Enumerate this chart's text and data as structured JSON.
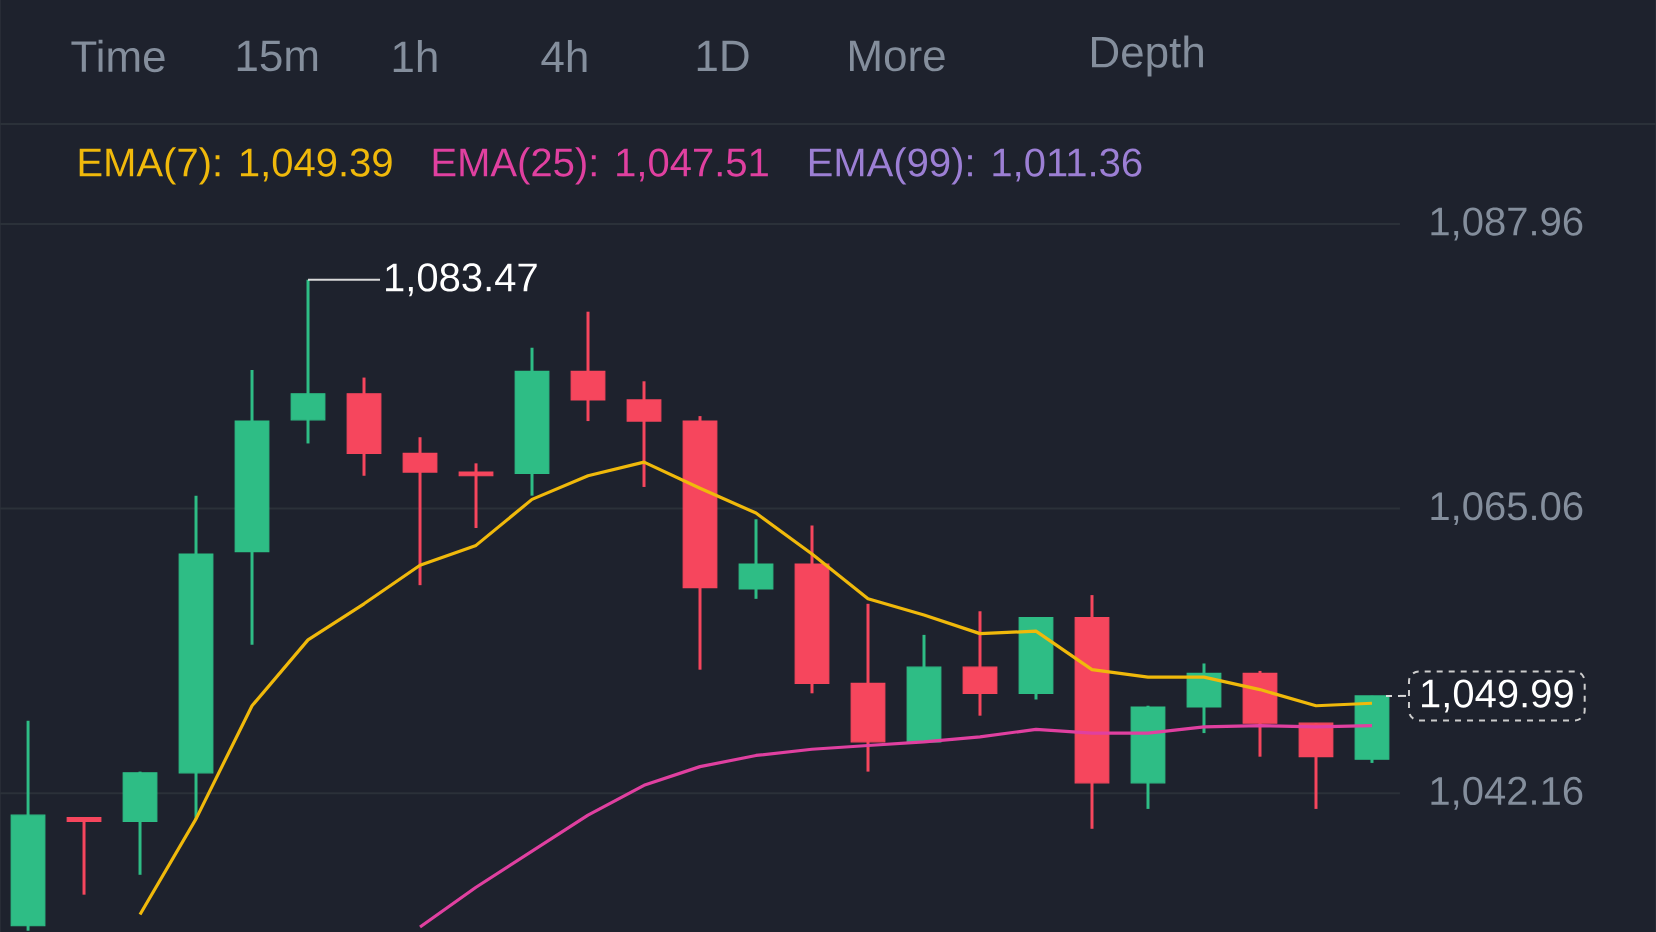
{
  "chart_data": {
    "type": "candlestick",
    "categories": [
      null,
      null,
      null,
      null,
      null,
      null,
      null,
      null,
      null,
      null,
      null,
      null,
      null,
      null,
      null,
      null,
      null,
      null,
      null,
      null,
      null,
      null,
      null,
      null,
      null
    ],
    "ohlc": [
      [
        1031.5,
        1048.0,
        1031.1,
        1040.4
      ],
      [
        1040.2,
        1040.2,
        1034.0,
        1039.9
      ],
      [
        1039.9,
        1043.9,
        1035.6,
        1043.8
      ],
      [
        1043.8,
        1066.1,
        1040.1,
        1061.4
      ],
      [
        1061.6,
        1076.2,
        1054.1,
        1072.1
      ],
      [
        1072.2,
        1083.47,
        1070.3,
        1074.3
      ],
      [
        1074.3,
        1075.6,
        1067.7,
        1069.5
      ],
      [
        1069.5,
        1070.8,
        1058.9,
        1068.0
      ],
      [
        1068.0,
        1068.7,
        1063.5,
        1067.7
      ],
      [
        1067.9,
        1078.0,
        1066.1,
        1076.1
      ],
      [
        1076.1,
        1080.9,
        1072.1,
        1073.8
      ],
      [
        1073.8,
        1075.3,
        1066.8,
        1072.1
      ],
      [
        1072.1,
        1072.5,
        1052.1,
        1058.7
      ],
      [
        1058.6,
        1064.2,
        1057.8,
        1060.6
      ],
      [
        1060.6,
        1063.7,
        1050.2,
        1051.0
      ],
      [
        1051.0,
        1057.4,
        1043.9,
        1046.3
      ],
      [
        1046.3,
        1054.9,
        1046.3,
        1052.3
      ],
      [
        1052.3,
        1056.8,
        1048.4,
        1050.2
      ],
      [
        1050.2,
        1056.3,
        1049.7,
        1056.3
      ],
      [
        1056.3,
        1058.1,
        1039.3,
        1043.0
      ],
      [
        1043.0,
        1049.2,
        1040.9,
        1049.1
      ],
      [
        1049.1,
        1052.6,
        1047.0,
        1051.8
      ],
      [
        1051.8,
        1052.0,
        1045.1,
        1047.8
      ],
      [
        1047.8,
        1047.8,
        1040.9,
        1045.1
      ],
      [
        1044.9,
        1050.0,
        1044.6,
        1049.99
      ]
    ],
    "colors": [
      "#2ebd85",
      "#f6465d",
      "#2ebd85",
      "#2ebd85",
      "#2ebd85",
      "#2ebd85",
      "#f6465d",
      "#f6465d",
      "#f6465d",
      "#2ebd85",
      "#f6465d",
      "#f6465d",
      "#f6465d",
      "#2ebd85",
      "#f6465d",
      "#f6465d",
      "#2ebd85",
      "#f6465d",
      "#2ebd85",
      "#f6465d",
      "#2ebd85",
      "#2ebd85",
      "#f6465d",
      "#f6465d",
      "#2ebd85"
    ],
    "series": [
      {
        "name": "EMA(7): 1,049.39",
        "type": "line",
        "color": "#f0b90b",
        "values": [
          null,
          null,
          1032.4,
          1040.1,
          1049.2,
          1054.5,
          1057.4,
          1060.5,
          1062.1,
          1065.8,
          1067.7,
          1068.8,
          1066.7,
          1064.7,
          1061.4,
          1057.8,
          1056.5,
          1055.0,
          1055.2,
          1052.1,
          1051.5,
          1051.5,
          1050.5,
          1049.2,
          1049.4
        ]
      },
      {
        "name": "EMA(25): 1,047.51",
        "type": "line",
        "color": "#e040a0",
        "values": [
          null,
          null,
          null,
          null,
          null,
          null,
          null,
          1031.4,
          1034.6,
          1037.5,
          1040.4,
          1042.8,
          1044.3,
          1045.2,
          1045.7,
          1046.0,
          1046.3,
          1046.7,
          1047.3,
          1047.0,
          1047.0,
          1047.5,
          1047.6,
          1047.5,
          1047.6
        ]
      },
      {
        "name": "EMA(99): 1,011.36",
        "type": "line",
        "color": "#9c7fd4",
        "values": [
          null,
          null,
          null,
          null,
          null,
          null,
          null,
          null,
          null,
          null,
          null,
          null,
          null,
          null,
          null,
          null,
          null,
          null,
          null,
          null,
          null,
          null,
          null,
          null,
          null
        ]
      }
    ],
    "ylim": [
      1031,
      1096
    ],
    "yticks": [
      {
        "value": 1042.16,
        "label": "1,042.16"
      },
      {
        "value": 1065.06,
        "label": "1,065.06"
      },
      {
        "value": 1087.96,
        "label": "1,087.96"
      }
    ],
    "grid": "y",
    "legend": "top",
    "ref_lines": [
      {
        "axis": "y",
        "value": 1049.99,
        "label": "1,049.99",
        "line_style": "dashed"
      }
    ],
    "annotations": [
      "Time",
      "15m",
      "1h",
      "4h",
      "1D",
      "More",
      "Depth",
      "1,083.47"
    ]
  }
}
